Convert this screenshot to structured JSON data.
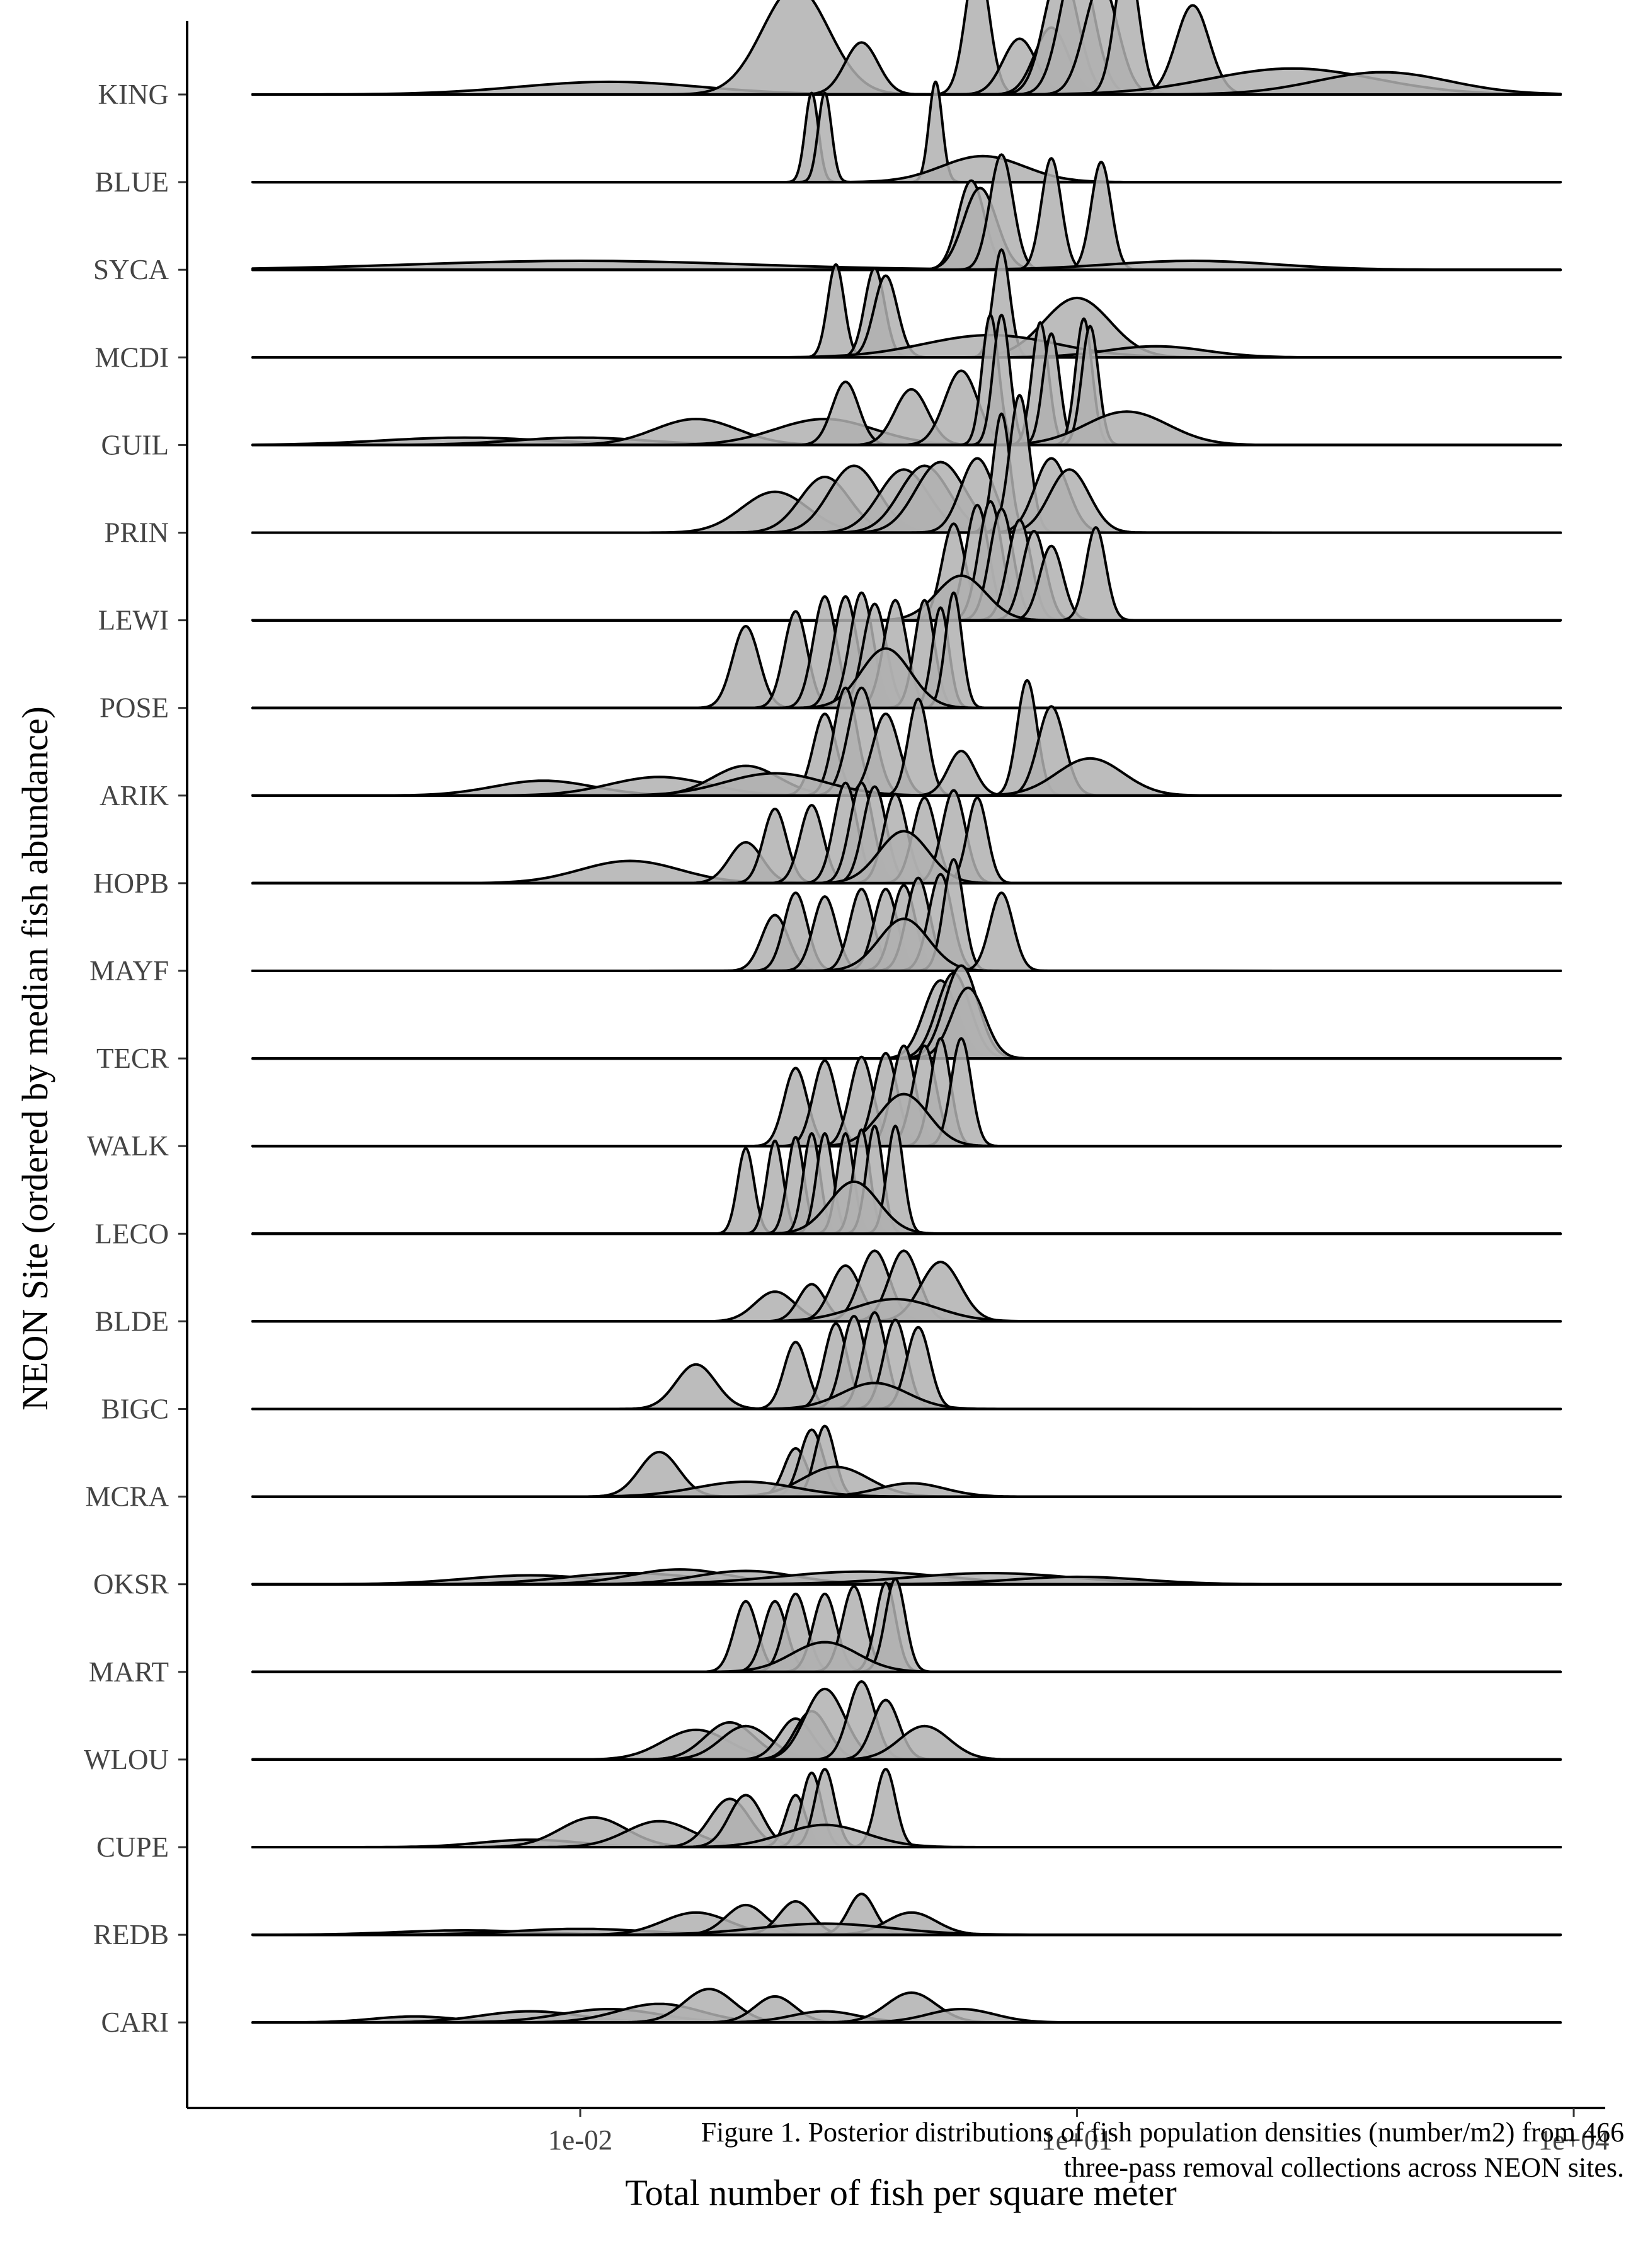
{
  "chart_data": {
    "type": "ridgeline",
    "xlabel": "Total number of fish per square meter",
    "ylabel": "NEON Site (ordered by median fish abundance)",
    "x_scale": "log10",
    "xlim": [
      0.0001,
      8000
    ],
    "x_ticks": [
      0.01,
      10,
      10000
    ],
    "x_tick_labels": [
      "1e-02",
      "1e+01",
      "1e+04"
    ],
    "grid": false,
    "fill_color": "#b0b0b0",
    "line_color": "#000000",
    "sites": [
      {
        "name": "KING",
        "peaks": [
          [
            0.015,
            0.55,
            0.17
          ],
          [
            0.2,
            0.2,
            1.45
          ],
          [
            0.5,
            0.1,
            0.7
          ],
          [
            2.5,
            0.07,
            1.85
          ],
          [
            4.5,
            0.1,
            0.75
          ],
          [
            7,
            0.1,
            0.9
          ],
          [
            8,
            0.1,
            1.7
          ],
          [
            10,
            0.1,
            1.85
          ],
          [
            14,
            0.1,
            1.5
          ],
          [
            20,
            0.07,
            1.9
          ],
          [
            50,
            0.1,
            1.2
          ],
          [
            200,
            0.5,
            0.35
          ],
          [
            700,
            0.4,
            0.3
          ]
        ]
      },
      {
        "name": "BLUE",
        "peaks": [
          [
            0.25,
            0.04,
            1.2
          ],
          [
            0.3,
            0.04,
            1.2
          ],
          [
            1.4,
            0.04,
            1.35
          ],
          [
            2.7,
            0.25,
            0.35
          ]
        ]
      },
      {
        "name": "SYCA",
        "peaks": [
          [
            0.01,
            1.0,
            0.12
          ],
          [
            2.3,
            0.08,
            1.2
          ],
          [
            2.6,
            0.1,
            1.1
          ],
          [
            3.5,
            0.07,
            1.55
          ],
          [
            7,
            0.06,
            1.5
          ],
          [
            14,
            0.06,
            1.45
          ],
          [
            50,
            0.5,
            0.12
          ]
        ]
      },
      {
        "name": "MCDI",
        "peaks": [
          [
            0.35,
            0.05,
            1.25
          ],
          [
            0.6,
            0.06,
            1.2
          ],
          [
            0.7,
            0.07,
            1.1
          ],
          [
            3.5,
            0.05,
            1.45
          ],
          [
            10,
            0.2,
            0.8
          ],
          [
            3,
            0.4,
            0.3
          ],
          [
            30,
            0.3,
            0.15
          ]
        ]
      },
      {
        "name": "GUIL",
        "peaks": [
          [
            0.002,
            0.5,
            0.1
          ],
          [
            0.01,
            0.4,
            0.1
          ],
          [
            0.05,
            0.25,
            0.35
          ],
          [
            0.3,
            0.3,
            0.35
          ],
          [
            0.4,
            0.08,
            0.85
          ],
          [
            1,
            0.1,
            0.75
          ],
          [
            2,
            0.1,
            1.0
          ],
          [
            3,
            0.05,
            1.75
          ],
          [
            3.5,
            0.05,
            1.75
          ],
          [
            6,
            0.05,
            1.65
          ],
          [
            7,
            0.05,
            1.5
          ],
          [
            11,
            0.05,
            1.7
          ],
          [
            12,
            0.05,
            1.6
          ],
          [
            20,
            0.25,
            0.45
          ]
        ]
      },
      {
        "name": "PRIN",
        "peaks": [
          [
            0.15,
            0.2,
            0.55
          ],
          [
            0.3,
            0.15,
            0.75
          ],
          [
            0.45,
            0.15,
            0.9
          ],
          [
            0.9,
            0.15,
            0.85
          ],
          [
            1.2,
            0.15,
            0.9
          ],
          [
            1.5,
            0.15,
            0.95
          ],
          [
            2.5,
            0.1,
            1.0
          ],
          [
            3.5,
            0.05,
            1.6
          ],
          [
            4.5,
            0.06,
            1.85
          ],
          [
            7,
            0.1,
            1.0
          ],
          [
            9,
            0.12,
            0.85
          ]
        ]
      },
      {
        "name": "LEWI",
        "peaks": [
          [
            1.8,
            0.07,
            1.3
          ],
          [
            2.5,
            0.07,
            1.55
          ],
          [
            3,
            0.07,
            1.6
          ],
          [
            3.5,
            0.07,
            1.5
          ],
          [
            4.5,
            0.07,
            1.35
          ],
          [
            5.5,
            0.07,
            1.2
          ],
          [
            7,
            0.07,
            1.0
          ],
          [
            13,
            0.06,
            1.25
          ],
          [
            2,
            0.15,
            0.6
          ]
        ]
      },
      {
        "name": "POSE",
        "peaks": [
          [
            0.1,
            0.08,
            1.1
          ],
          [
            0.2,
            0.07,
            1.3
          ],
          [
            0.3,
            0.07,
            1.5
          ],
          [
            0.4,
            0.07,
            1.5
          ],
          [
            0.5,
            0.07,
            1.55
          ],
          [
            0.6,
            0.07,
            1.4
          ],
          [
            0.8,
            0.07,
            1.45
          ],
          [
            1.2,
            0.06,
            1.45
          ],
          [
            1.5,
            0.05,
            1.35
          ],
          [
            1.8,
            0.05,
            1.55
          ],
          [
            0.7,
            0.15,
            0.8
          ]
        ]
      },
      {
        "name": "ARIK",
        "peaks": [
          [
            0.006,
            0.3,
            0.2
          ],
          [
            0.03,
            0.3,
            0.25
          ],
          [
            0.1,
            0.2,
            0.4
          ],
          [
            0.3,
            0.07,
            1.1
          ],
          [
            0.4,
            0.07,
            1.45
          ],
          [
            0.5,
            0.08,
            1.45
          ],
          [
            0.7,
            0.08,
            1.1
          ],
          [
            1.1,
            0.06,
            1.3
          ],
          [
            2,
            0.08,
            0.6
          ],
          [
            5,
            0.06,
            1.55
          ],
          [
            7,
            0.08,
            1.2
          ],
          [
            12,
            0.2,
            0.5
          ],
          [
            0.15,
            0.3,
            0.3
          ]
        ]
      },
      {
        "name": "HOPB",
        "peaks": [
          [
            0.02,
            0.3,
            0.3
          ],
          [
            0.1,
            0.1,
            0.55
          ],
          [
            0.15,
            0.07,
            1.0
          ],
          [
            0.25,
            0.07,
            1.05
          ],
          [
            0.4,
            0.07,
            1.35
          ],
          [
            0.5,
            0.07,
            1.35
          ],
          [
            0.6,
            0.07,
            1.3
          ],
          [
            0.8,
            0.07,
            1.2
          ],
          [
            1.2,
            0.07,
            1.15
          ],
          [
            1.8,
            0.07,
            1.25
          ],
          [
            2.5,
            0.06,
            1.15
          ],
          [
            0.9,
            0.15,
            0.7
          ]
        ]
      },
      {
        "name": "MAYF",
        "peaks": [
          [
            0.15,
            0.08,
            0.75
          ],
          [
            0.2,
            0.07,
            1.05
          ],
          [
            0.3,
            0.07,
            1.0
          ],
          [
            0.5,
            0.07,
            1.1
          ],
          [
            0.7,
            0.07,
            1.1
          ],
          [
            0.9,
            0.07,
            1.15
          ],
          [
            1.1,
            0.07,
            1.25
          ],
          [
            1.5,
            0.07,
            1.3
          ],
          [
            1.8,
            0.06,
            1.5
          ],
          [
            3.5,
            0.07,
            1.05
          ],
          [
            0.9,
            0.15,
            0.7
          ]
        ]
      },
      {
        "name": "TECR",
        "peaks": [
          [
            1.5,
            0.1,
            1.05
          ],
          [
            1.8,
            0.1,
            1.15
          ],
          [
            2,
            0.1,
            1.25
          ],
          [
            2.2,
            0.1,
            0.95
          ]
        ]
      },
      {
        "name": "WALK",
        "peaks": [
          [
            0.2,
            0.07,
            1.05
          ],
          [
            0.3,
            0.07,
            1.15
          ],
          [
            0.5,
            0.07,
            1.2
          ],
          [
            0.7,
            0.07,
            1.25
          ],
          [
            0.9,
            0.07,
            1.35
          ],
          [
            1.2,
            0.07,
            1.35
          ],
          [
            1.5,
            0.06,
            1.45
          ],
          [
            2,
            0.06,
            1.45
          ],
          [
            0.9,
            0.15,
            0.7
          ]
        ]
      },
      {
        "name": "LECO",
        "peaks": [
          [
            0.1,
            0.05,
            1.15
          ],
          [
            0.15,
            0.05,
            1.25
          ],
          [
            0.2,
            0.05,
            1.3
          ],
          [
            0.25,
            0.05,
            1.35
          ],
          [
            0.3,
            0.05,
            1.35
          ],
          [
            0.4,
            0.05,
            1.35
          ],
          [
            0.5,
            0.05,
            1.4
          ],
          [
            0.6,
            0.05,
            1.45
          ],
          [
            0.8,
            0.05,
            1.45
          ],
          [
            0.45,
            0.15,
            0.7
          ]
        ]
      },
      {
        "name": "BLDE",
        "peaks": [
          [
            0.15,
            0.12,
            0.4
          ],
          [
            0.25,
            0.08,
            0.5
          ],
          [
            0.4,
            0.09,
            0.75
          ],
          [
            0.6,
            0.09,
            0.95
          ],
          [
            0.9,
            0.09,
            0.95
          ],
          [
            1.5,
            0.12,
            0.8
          ],
          [
            0.8,
            0.25,
            0.3
          ]
        ]
      },
      {
        "name": "BIGC",
        "peaks": [
          [
            0.05,
            0.12,
            0.6
          ],
          [
            0.2,
            0.07,
            0.9
          ],
          [
            0.35,
            0.07,
            1.15
          ],
          [
            0.45,
            0.07,
            1.25
          ],
          [
            0.6,
            0.07,
            1.3
          ],
          [
            0.8,
            0.07,
            1.2
          ],
          [
            1.1,
            0.07,
            1.1
          ],
          [
            0.6,
            0.2,
            0.35
          ]
        ]
      },
      {
        "name": "MCRA",
        "peaks": [
          [
            0.03,
            0.12,
            0.6
          ],
          [
            0.2,
            0.07,
            0.65
          ],
          [
            0.25,
            0.07,
            0.9
          ],
          [
            0.3,
            0.06,
            0.95
          ],
          [
            0.35,
            0.2,
            0.4
          ],
          [
            1,
            0.2,
            0.18
          ],
          [
            0.1,
            0.3,
            0.2
          ]
        ]
      },
      {
        "name": "OKSR",
        "peaks": [
          [
            0.005,
            0.4,
            0.12
          ],
          [
            0.02,
            0.4,
            0.15
          ],
          [
            0.04,
            0.3,
            0.2
          ],
          [
            0.1,
            0.3,
            0.18
          ],
          [
            0.5,
            0.5,
            0.17
          ],
          [
            3,
            0.5,
            0.15
          ],
          [
            10,
            0.4,
            0.1
          ]
        ]
      },
      {
        "name": "MART",
        "peaks": [
          [
            0.1,
            0.07,
            0.95
          ],
          [
            0.15,
            0.07,
            0.95
          ],
          [
            0.2,
            0.07,
            1.05
          ],
          [
            0.3,
            0.07,
            1.05
          ],
          [
            0.45,
            0.07,
            1.15
          ],
          [
            0.7,
            0.06,
            1.2
          ],
          [
            0.8,
            0.06,
            1.25
          ],
          [
            0.3,
            0.2,
            0.4
          ]
        ]
      },
      {
        "name": "WLOU",
        "peaks": [
          [
            0.05,
            0.2,
            0.4
          ],
          [
            0.08,
            0.15,
            0.5
          ],
          [
            0.1,
            0.15,
            0.45
          ],
          [
            0.2,
            0.1,
            0.55
          ],
          [
            0.25,
            0.1,
            0.65
          ],
          [
            0.3,
            0.12,
            0.95
          ],
          [
            0.5,
            0.08,
            1.05
          ],
          [
            0.7,
            0.08,
            0.8
          ],
          [
            1.2,
            0.15,
            0.45
          ]
        ]
      },
      {
        "name": "CUPE",
        "peaks": [
          [
            0.005,
            0.3,
            0.1
          ],
          [
            0.012,
            0.2,
            0.4
          ],
          [
            0.03,
            0.2,
            0.35
          ],
          [
            0.08,
            0.12,
            0.65
          ],
          [
            0.1,
            0.1,
            0.7
          ],
          [
            0.2,
            0.06,
            0.7
          ],
          [
            0.25,
            0.06,
            1.0
          ],
          [
            0.3,
            0.06,
            1.05
          ],
          [
            0.7,
            0.06,
            1.05
          ],
          [
            0.3,
            0.25,
            0.3
          ]
        ]
      },
      {
        "name": "REDB",
        "peaks": [
          [
            0.002,
            0.4,
            0.06
          ],
          [
            0.01,
            0.4,
            0.08
          ],
          [
            0.05,
            0.2,
            0.3
          ],
          [
            0.1,
            0.12,
            0.4
          ],
          [
            0.2,
            0.1,
            0.45
          ],
          [
            0.5,
            0.08,
            0.55
          ],
          [
            1,
            0.15,
            0.3
          ],
          [
            0.3,
            0.4,
            0.15
          ]
        ]
      },
      {
        "name": "CARI",
        "peaks": [
          [
            0.001,
            0.25,
            0.08
          ],
          [
            0.005,
            0.3,
            0.15
          ],
          [
            0.015,
            0.3,
            0.18
          ],
          [
            0.03,
            0.25,
            0.25
          ],
          [
            0.06,
            0.15,
            0.45
          ],
          [
            0.15,
            0.12,
            0.35
          ],
          [
            0.3,
            0.2,
            0.15
          ],
          [
            1,
            0.15,
            0.4
          ],
          [
            2,
            0.2,
            0.18
          ]
        ]
      }
    ]
  },
  "caption": {
    "line1": "Figure 1. Posterior distributions of fish population densities (number/m2) from 466",
    "line2": "three-pass removal collections across NEON sites."
  }
}
